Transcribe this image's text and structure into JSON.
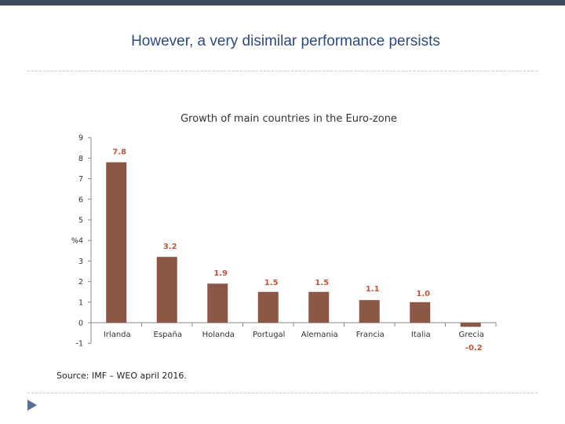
{
  "slide": {
    "title": "However, a very disimilar performance persists",
    "source": "Source: IMF – WEO april 2016."
  },
  "colors": {
    "bar": "#8b5746",
    "data_label": "#c0583a",
    "title": "#2e4a7a",
    "top_bar": "#3f4a5c",
    "nav_arrow": "#5a6f9a"
  },
  "nav": {
    "icon": "play-triangle-icon"
  },
  "chart_data": {
    "type": "bar",
    "title": "Growth of main countries in the Euro-zone",
    "xlabel": "",
    "ylabel": "%",
    "ylim": [
      -1,
      9
    ],
    "yticks": [
      -1,
      0,
      1,
      2,
      3,
      4,
      5,
      6,
      7,
      8,
      9
    ],
    "ytick_labels": [
      "-1",
      "0",
      "1",
      "2",
      "3",
      "%4",
      "5",
      "6",
      "7",
      "8",
      "9"
    ],
    "categories": [
      "Irlanda",
      "España",
      "Holanda",
      "Portugal",
      "Alemania",
      "Francia",
      "Italia",
      "Grecia"
    ],
    "values": [
      7.8,
      3.2,
      1.9,
      1.5,
      1.5,
      1.1,
      1.0,
      -0.2
    ],
    "data_labels": [
      "7.8",
      "3.2",
      "1.9",
      "1.5",
      "1.5",
      "1.1",
      "1.0",
      "-0.2"
    ],
    "grid": false
  }
}
